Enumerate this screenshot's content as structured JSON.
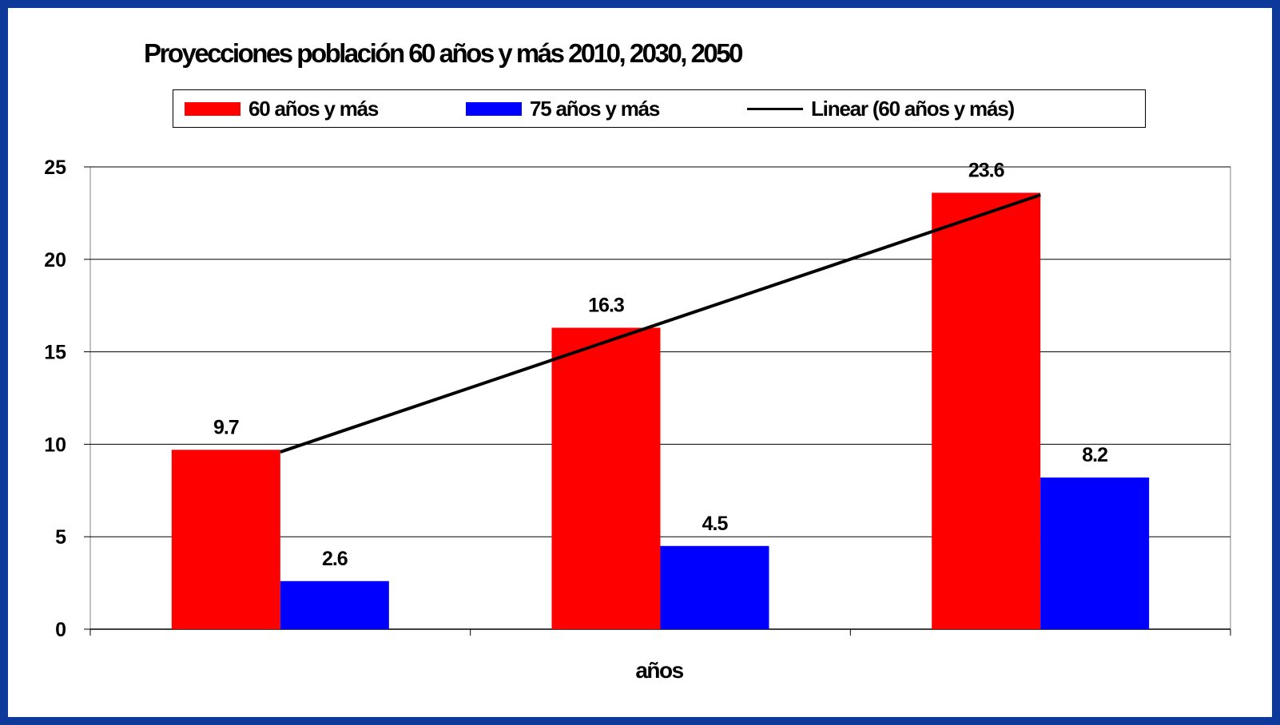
{
  "chart_data": {
    "type": "bar",
    "title": "Proyecciones población 60 años y más 2010, 2030, 2050",
    "xlabel": "años",
    "ylabel": "",
    "categories": [
      "",
      "",
      ""
    ],
    "series": [
      {
        "name": "60 años y más",
        "color": "#ff0000",
        "values": [
          9.7,
          16.3,
          23.6
        ]
      },
      {
        "name": "75 años y más",
        "color": "#0000ff",
        "values": [
          2.6,
          4.5,
          8.2
        ]
      }
    ],
    "trendline": {
      "name": "Linear (60 años y más)",
      "type": "linear",
      "of_series": "60 años y más",
      "color": "#000000"
    },
    "ylim": [
      0,
      25
    ],
    "yticks": [
      0,
      5,
      10,
      15,
      20,
      25
    ],
    "grid": true,
    "legend": "top"
  },
  "colors": {
    "frame": "#0d3a9a",
    "background": "#ffffff"
  }
}
